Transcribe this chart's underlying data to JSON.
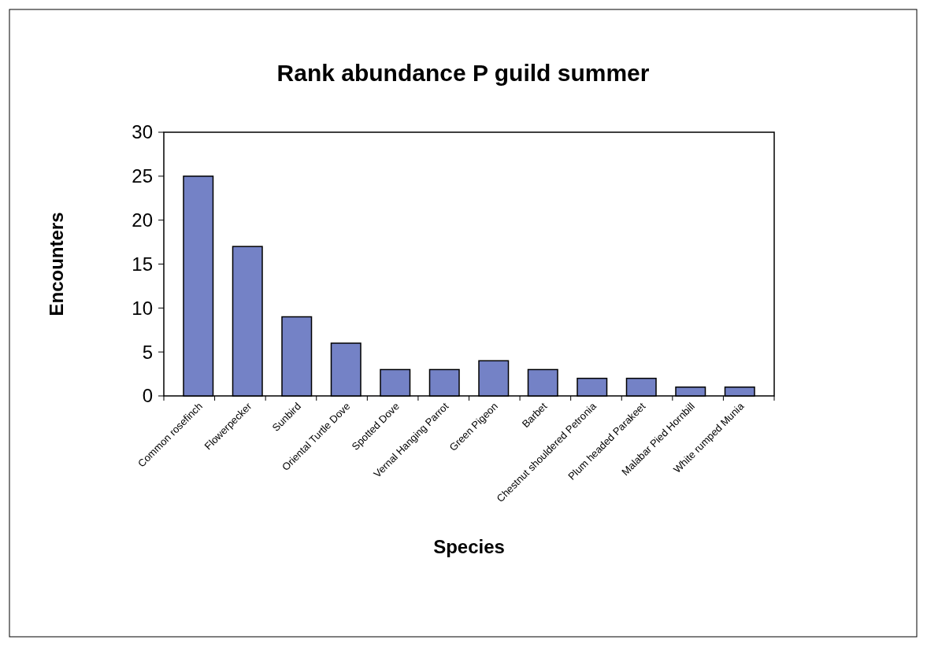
{
  "chart_data": {
    "type": "bar",
    "title": "Rank abundance P guild summer",
    "xlabel": "Species",
    "ylabel": "Encounters",
    "categories": [
      "Common rosefinch",
      "Flowerpecker",
      "Sunbird",
      "Oriental Turtle Dove",
      "Spotted Dove",
      "Vernal Hanging Parrot",
      "Green Pigeon",
      "Barbet",
      "Chestnut shouldered Petronia",
      "Plum headed Parakeet",
      "Malabar Pied Hornbill",
      "White rumped Munia"
    ],
    "values": [
      25,
      17,
      9,
      6,
      3,
      3,
      4,
      3,
      2,
      2,
      1,
      1
    ],
    "color": "#7482c6",
    "ylim": [
      0,
      30
    ],
    "yticks": [
      0,
      5,
      10,
      15,
      20,
      25,
      30
    ],
    "grid": false
  }
}
